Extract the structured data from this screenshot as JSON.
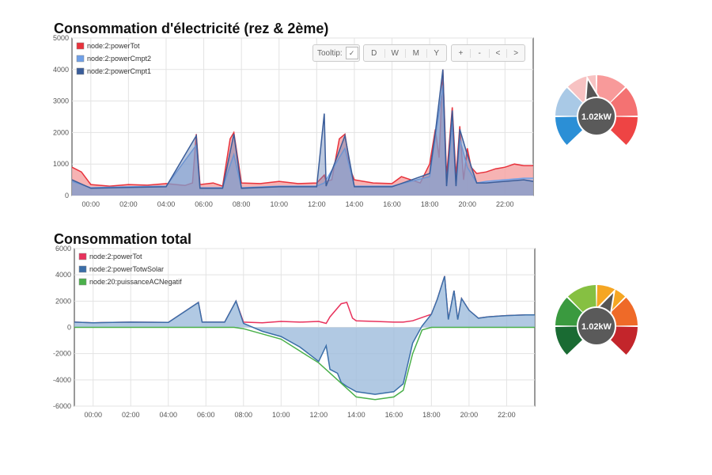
{
  "chart1": {
    "title": "Consommation d'électricité (rez & 2ème)",
    "toolbar": {
      "tooltip_label": "Tooltip:",
      "tooltip_check": "✓",
      "ranges": [
        "D",
        "W",
        "M",
        "Y"
      ],
      "nav": [
        "+",
        "-",
        "<",
        ">"
      ]
    },
    "gauge": {
      "value_label": "1.02kW",
      "value": 1.02
    }
  },
  "chart2": {
    "title": "Consommation total",
    "gauge": {
      "value_label": "1.02kW",
      "value": 1.02
    }
  },
  "chart_data": [
    {
      "type": "area",
      "title": "Consommation d'électricité (rez & 2ème)",
      "xlabel": "",
      "ylabel": "",
      "xlim": [
        -1,
        23.5
      ],
      "ylim": [
        0,
        5000
      ],
      "x_ticks": [
        "00:00",
        "02:00",
        "04:00",
        "06:00",
        "08:00",
        "10:00",
        "12:00",
        "14:00",
        "16:00",
        "18:00",
        "20:00",
        "22:00"
      ],
      "y_ticks": [
        0,
        1000,
        2000,
        3000,
        4000,
        5000
      ],
      "grid": true,
      "legend": "top-left",
      "series": [
        {
          "name": "node:2:powerTot",
          "color": "#e8323c",
          "points": [
            [
              -1,
              900
            ],
            [
              -0.5,
              750
            ],
            [
              0,
              350
            ],
            [
              1,
              300
            ],
            [
              2,
              350
            ],
            [
              3,
              330
            ],
            [
              4,
              380
            ],
            [
              5,
              320
            ],
            [
              5.4,
              400
            ],
            [
              5.6,
              1950
            ],
            [
              5.8,
              350
            ],
            [
              6.5,
              400
            ],
            [
              7,
              300
            ],
            [
              7.4,
              1800
            ],
            [
              7.6,
              2000
            ],
            [
              7.8,
              1200
            ],
            [
              8,
              400
            ],
            [
              9,
              380
            ],
            [
              10,
              450
            ],
            [
              11,
              380
            ],
            [
              12,
              400
            ],
            [
              12.4,
              650
            ],
            [
              12.5,
              450
            ],
            [
              12.8,
              500
            ],
            [
              13.2,
              1800
            ],
            [
              13.5,
              1950
            ],
            [
              13.8,
              800
            ],
            [
              14,
              500
            ],
            [
              15,
              400
            ],
            [
              16,
              380
            ],
            [
              16.5,
              600
            ],
            [
              17,
              500
            ],
            [
              17.5,
              400
            ],
            [
              18,
              1000
            ],
            [
              18.3,
              2100
            ],
            [
              18.5,
              1200
            ],
            [
              18.7,
              4000
            ],
            [
              18.9,
              600
            ],
            [
              19.2,
              2800
            ],
            [
              19.4,
              600
            ],
            [
              19.6,
              2200
            ],
            [
              19.8,
              500
            ],
            [
              20,
              1500
            ],
            [
              20.2,
              900
            ],
            [
              20.5,
              700
            ],
            [
              21,
              750
            ],
            [
              21.5,
              850
            ],
            [
              22,
              900
            ],
            [
              22.5,
              1000
            ],
            [
              23,
              950
            ],
            [
              23.5,
              950
            ]
          ]
        },
        {
          "name": "node:2:powerCmpt2",
          "color": "#6fa0e8",
          "points": [
            [
              -1,
              450
            ],
            [
              0,
              250
            ],
            [
              2,
              280
            ],
            [
              4,
              300
            ],
            [
              5.6,
              1600
            ],
            [
              5.8,
              250
            ],
            [
              7,
              250
            ],
            [
              7.6,
              1300
            ],
            [
              8,
              250
            ],
            [
              10,
              300
            ],
            [
              12,
              300
            ],
            [
              12.4,
              400
            ],
            [
              13.5,
              1500
            ],
            [
              14,
              300
            ],
            [
              16,
              300
            ],
            [
              18,
              600
            ],
            [
              18.7,
              3500
            ],
            [
              18.9,
              300
            ],
            [
              19.2,
              2300
            ],
            [
              19.4,
              300
            ],
            [
              19.6,
              1800
            ],
            [
              20,
              900
            ],
            [
              20.5,
              400
            ],
            [
              21,
              450
            ],
            [
              22,
              500
            ],
            [
              23,
              550
            ],
            [
              23.5,
              550
            ]
          ]
        },
        {
          "name": "node:2:powerCmpt1",
          "color": "#3a5d9a",
          "points": [
            [
              -1,
              500
            ],
            [
              0,
              230
            ],
            [
              2,
              260
            ],
            [
              4,
              280
            ],
            [
              5.6,
              1900
            ],
            [
              5.8,
              230
            ],
            [
              7,
              230
            ],
            [
              7.6,
              1950
            ],
            [
              8,
              230
            ],
            [
              10,
              280
            ],
            [
              12,
              280
            ],
            [
              12.4,
              2600
            ],
            [
              12.5,
              300
            ],
            [
              13.5,
              1900
            ],
            [
              14,
              280
            ],
            [
              16,
              280
            ],
            [
              18,
              700
            ],
            [
              18.3,
              2000
            ],
            [
              18.7,
              4000
            ],
            [
              18.9,
              300
            ],
            [
              19.2,
              2700
            ],
            [
              19.4,
              300
            ],
            [
              19.6,
              2100
            ],
            [
              20,
              1300
            ],
            [
              20.5,
              400
            ],
            [
              21,
              400
            ],
            [
              22,
              450
            ],
            [
              23,
              500
            ],
            [
              23.5,
              450
            ]
          ]
        }
      ]
    },
    {
      "type": "area",
      "title": "Consommation total",
      "xlabel": "",
      "ylabel": "",
      "xlim": [
        -1,
        23.5
      ],
      "ylim": [
        -6000,
        6000
      ],
      "x_ticks": [
        "00:00",
        "02:00",
        "04:00",
        "06:00",
        "08:00",
        "10:00",
        "12:00",
        "14:00",
        "16:00",
        "18:00",
        "20:00",
        "22:00"
      ],
      "y_ticks": [
        -6000,
        -4000,
        -2000,
        0,
        2000,
        4000,
        6000
      ],
      "grid": true,
      "legend": "top-left",
      "series": [
        {
          "name": "node:2:powerTot",
          "color": "#e8325c",
          "points": [
            [
              -1,
              400
            ],
            [
              0,
              350
            ],
            [
              2,
              400
            ],
            [
              4,
              380
            ],
            [
              5.6,
              1900
            ],
            [
              5.8,
              400
            ],
            [
              7,
              400
            ],
            [
              7.6,
              2000
            ],
            [
              8,
              400
            ],
            [
              9,
              350
            ],
            [
              10,
              450
            ],
            [
              11,
              400
            ],
            [
              12,
              450
            ],
            [
              12.4,
              300
            ],
            [
              12.6,
              800
            ],
            [
              13.2,
              1800
            ],
            [
              13.5,
              1900
            ],
            [
              13.8,
              700
            ],
            [
              14,
              500
            ],
            [
              15,
              450
            ],
            [
              16,
              400
            ],
            [
              16.5,
              400
            ],
            [
              17,
              500
            ],
            [
              18,
              1000
            ],
            [
              18.3,
              2100
            ],
            [
              18.7,
              3900
            ],
            [
              18.9,
              600
            ],
            [
              19.2,
              2800
            ],
            [
              19.4,
              600
            ],
            [
              19.6,
              2200
            ],
            [
              20,
              1300
            ],
            [
              20.5,
              700
            ],
            [
              21,
              800
            ],
            [
              22,
              900
            ],
            [
              23,
              950
            ],
            [
              23.5,
              950
            ]
          ]
        },
        {
          "name": "node:2:powerTotwSolar",
          "color": "#3a6ea8",
          "points": [
            [
              -1,
              400
            ],
            [
              0,
              350
            ],
            [
              2,
              400
            ],
            [
              4,
              380
            ],
            [
              5.6,
              1900
            ],
            [
              5.8,
              400
            ],
            [
              7,
              400
            ],
            [
              7.6,
              2000
            ],
            [
              8,
              300
            ],
            [
              9,
              -300
            ],
            [
              10,
              -700
            ],
            [
              11,
              -1500
            ],
            [
              12,
              -2600
            ],
            [
              12.4,
              -1400
            ],
            [
              12.6,
              -3200
            ],
            [
              13,
              -3500
            ],
            [
              13.2,
              -4200
            ],
            [
              13.5,
              -4500
            ],
            [
              14,
              -4900
            ],
            [
              15,
              -5100
            ],
            [
              16,
              -4900
            ],
            [
              16.5,
              -4300
            ],
            [
              17,
              -1200
            ],
            [
              17.5,
              100
            ],
            [
              18,
              1000
            ],
            [
              18.3,
              2100
            ],
            [
              18.7,
              3900
            ],
            [
              18.9,
              600
            ],
            [
              19.2,
              2800
            ],
            [
              19.4,
              600
            ],
            [
              19.6,
              2200
            ],
            [
              20,
              1300
            ],
            [
              20.5,
              700
            ],
            [
              21,
              800
            ],
            [
              22,
              900
            ],
            [
              23,
              950
            ],
            [
              23.5,
              950
            ]
          ]
        },
        {
          "name": "node:20:puissanceACNegatif",
          "color": "#4ab04a",
          "points": [
            [
              -1,
              0
            ],
            [
              7.5,
              0
            ],
            [
              8,
              -100
            ],
            [
              9,
              -500
            ],
            [
              10,
              -900
            ],
            [
              11,
              -1800
            ],
            [
              12,
              -2700
            ],
            [
              13,
              -4000
            ],
            [
              14,
              -5300
            ],
            [
              15,
              -5500
            ],
            [
              16,
              -5300
            ],
            [
              16.5,
              -4800
            ],
            [
              17,
              -2000
            ],
            [
              17.5,
              -200
            ],
            [
              18,
              0
            ],
            [
              23.5,
              0
            ]
          ]
        }
      ]
    }
  ]
}
